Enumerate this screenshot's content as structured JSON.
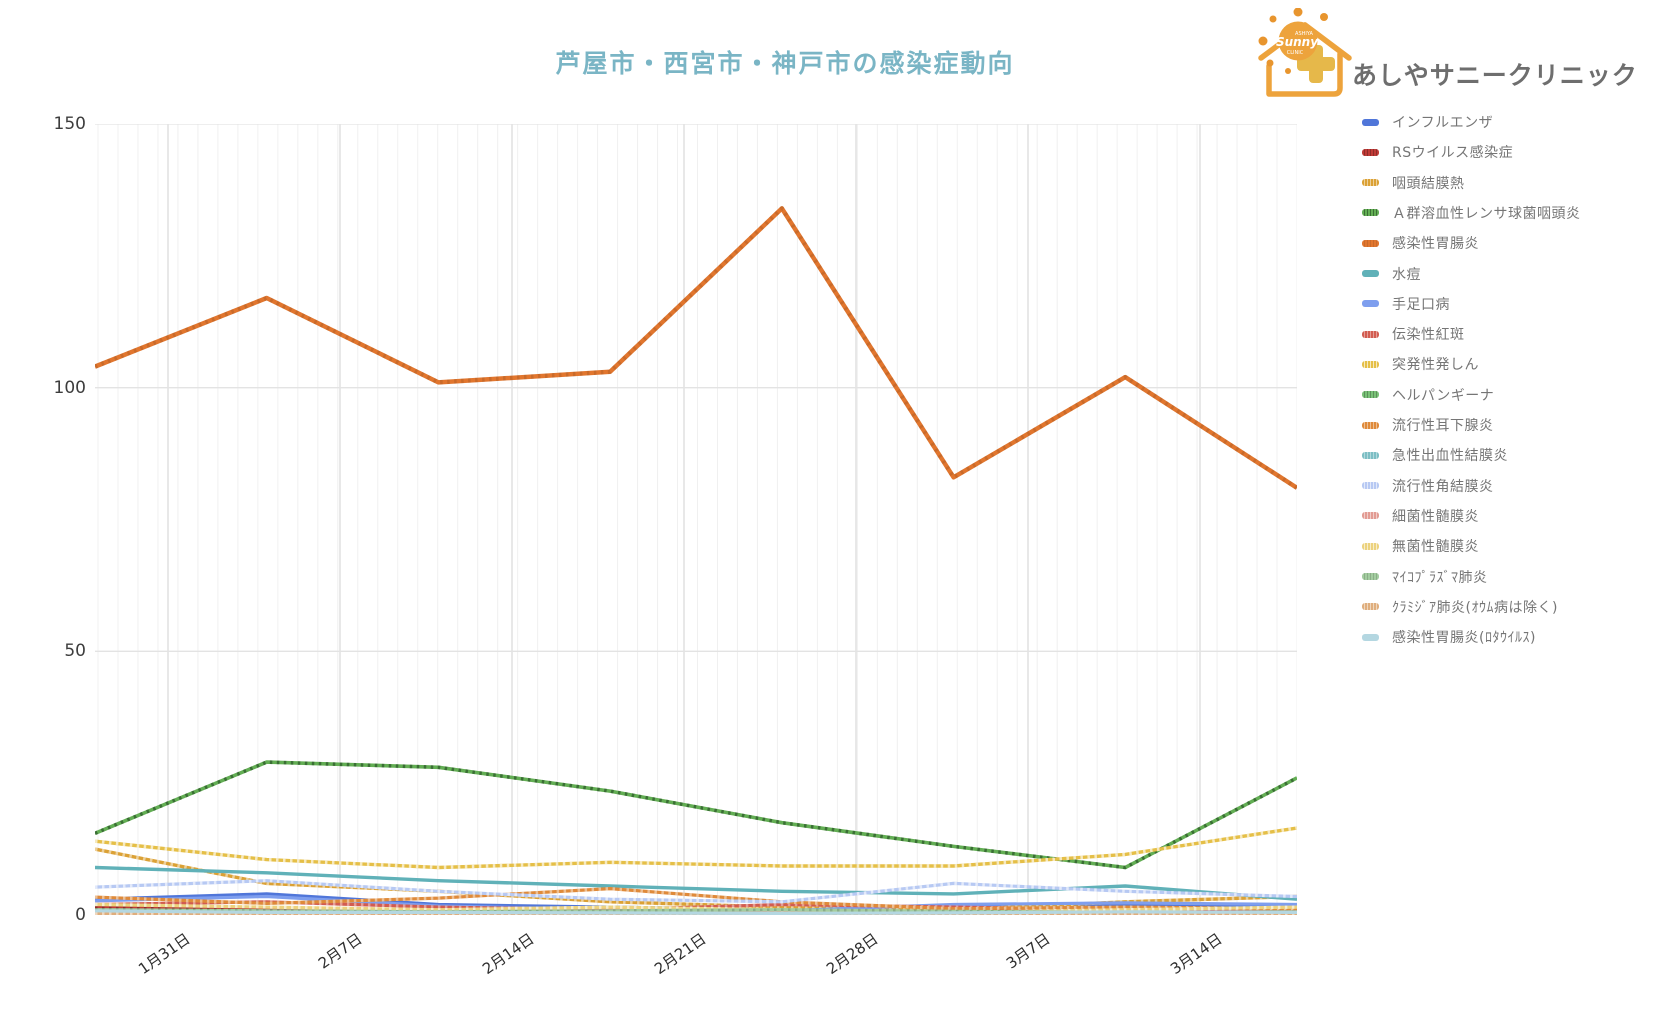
{
  "title": {
    "text": "芦屋市・西宮市・神戸市の感染症動向",
    "color": "#7ab5c5"
  },
  "logo": {
    "clinic_name": "あしやサニークリニック",
    "sun_top": "ASHIYA",
    "sun_brand": "Sunny",
    "sun_bottom": "CLINIC",
    "accent_orange": "#eda33c",
    "cross_gold": "#e6b84a"
  },
  "chart_data": {
    "type": "line",
    "title": "芦屋市・西宮市・神戸市の感染症動向",
    "x_ticks": [
      "1月31日",
      "2月7日",
      "2月14日",
      "2月21日",
      "2月28日",
      "3月7日",
      "3月14日"
    ],
    "y_ticks": [
      0,
      50,
      100,
      150
    ],
    "ylim": [
      0,
      150
    ],
    "n_points": 8,
    "grid": true,
    "legend_position": "right",
    "series": [
      {
        "name": "インフルエンザ",
        "color": "#5076d9",
        "overlay": null,
        "w": 3.2,
        "values": [
          3,
          4,
          2,
          1.5,
          1,
          1.5,
          2,
          1.5
        ]
      },
      {
        "name": "RSウイルス感染症",
        "color": "#bf3a36",
        "overlay": "rgba(0,0,0,0.25)",
        "w": 3.2,
        "values": [
          1.5,
          1,
          0.8,
          0.5,
          1,
          1.2,
          0.8,
          0.5
        ]
      },
      {
        "name": "咽頭結膜熱",
        "color": "#dba135",
        "overlay": "rgba(255,255,255,0.5)",
        "w": 3.4,
        "values": [
          12.5,
          6,
          4.5,
          2.5,
          1.5,
          1,
          2.5,
          3.5
        ]
      },
      {
        "name": "Ａ群溶血性レンサ球菌咽頭炎",
        "color": "#63ae54",
        "overlay": "rgba(25,60,25,0.55)",
        "w": 3.6,
        "values": [
          15.5,
          29,
          28,
          23.5,
          17.5,
          13,
          9,
          26
        ]
      },
      {
        "name": "感染性胃腸炎",
        "color": "#e1762e",
        "overlay": "rgba(0,0,0,0.1)",
        "w": 4.5,
        "values": [
          104,
          117,
          101,
          103,
          134,
          83,
          102,
          81
        ]
      },
      {
        "name": "水痘",
        "color": "#60b1b8",
        "overlay": null,
        "w": 3.4,
        "values": [
          9,
          8,
          6.5,
          5.5,
          4.5,
          4,
          5.5,
          3
        ]
      },
      {
        "name": "手足口病",
        "color": "#7e9eee",
        "overlay": null,
        "w": 3.2,
        "values": [
          2.7,
          3.5,
          1.7,
          1,
          0.8,
          2,
          2.3,
          2
        ]
      },
      {
        "name": "伝染性紅斑",
        "color": "#d25c50",
        "overlay": "rgba(255,255,255,0.4)",
        "w": 3.2,
        "values": [
          2,
          2.5,
          1.5,
          1,
          2,
          1.5,
          1,
          0.8
        ]
      },
      {
        "name": "突発性発しん",
        "color": "#e5bf47",
        "overlay": "rgba(255,255,255,0.65)",
        "w": 3.4,
        "values": [
          14,
          10.5,
          9,
          10,
          9.3,
          9.3,
          11.5,
          16.5
        ]
      },
      {
        "name": "ヘルパンギーナ",
        "color": "#79c177",
        "overlay": "rgba(0,0,0,0.25)",
        "w": 3.2,
        "values": [
          0.4,
          0.3,
          0.3,
          0.4,
          0.3,
          0.3,
          0.4,
          0.3
        ]
      },
      {
        "name": "流行性耳下腺炎",
        "color": "#df8a3a",
        "overlay": "rgba(255,255,255,0.45)",
        "w": 3.2,
        "values": [
          3.4,
          2.2,
          3.2,
          5,
          2.5,
          1.2,
          1.5,
          1.2
        ]
      },
      {
        "name": "急性出血性結膜炎",
        "color": "#7cbec4",
        "overlay": "rgba(255,255,255,0.4)",
        "w": 3.2,
        "values": [
          0.6,
          0.4,
          0.3,
          0.3,
          0.4,
          0.3,
          0.3,
          0.4
        ]
      },
      {
        "name": "流行性角結膜炎",
        "color": "#b7c9f3",
        "overlay": "rgba(255,255,255,0.6)",
        "w": 3.2,
        "values": [
          5.3,
          6.5,
          4.5,
          3,
          2.5,
          6,
          4.5,
          3.5
        ]
      },
      {
        "name": "細菌性髄膜炎",
        "color": "#e29b93",
        "overlay": "rgba(255,255,255,0.5)",
        "w": 3.2,
        "values": [
          0.5,
          0.4,
          0.3,
          0.4,
          0.5,
          0.4,
          0.3,
          0.4
        ]
      },
      {
        "name": "無菌性髄膜炎",
        "color": "#ecd27e",
        "overlay": "rgba(255,255,255,0.6)",
        "w": 3.2,
        "values": [
          2,
          1.5,
          1,
          1.5,
          1,
          0.5,
          1,
          1.5
        ]
      },
      {
        "name": "ﾏｲｺﾌﾟﾗｽﾞﾏ肺炎",
        "color": "#a3cda0",
        "overlay": "rgba(0,0,0,0.15)",
        "w": 3.2,
        "values": [
          1,
          0.8,
          0.6,
          0.8,
          1,
          0.7,
          0.5,
          0.6
        ]
      },
      {
        "name": "ｸﾗﾐｼﾞｱ肺炎(ｵｳﾑ病は除く)",
        "color": "#dfae7d",
        "overlay": "rgba(255,255,255,0.5)",
        "w": 3.2,
        "values": [
          0.3,
          0.2,
          0.2,
          0.3,
          0.2,
          0.2,
          0.3,
          0.2
        ]
      },
      {
        "name": "感染性胃腸炎(ﾛﾀｳｲﾙｽ)",
        "color": "#b4d7e1",
        "overlay": null,
        "w": 3.2,
        "values": [
          0.8,
          0.5,
          0.5,
          0.4,
          0.3,
          0.4,
          0.6,
          0.5
        ]
      }
    ]
  }
}
